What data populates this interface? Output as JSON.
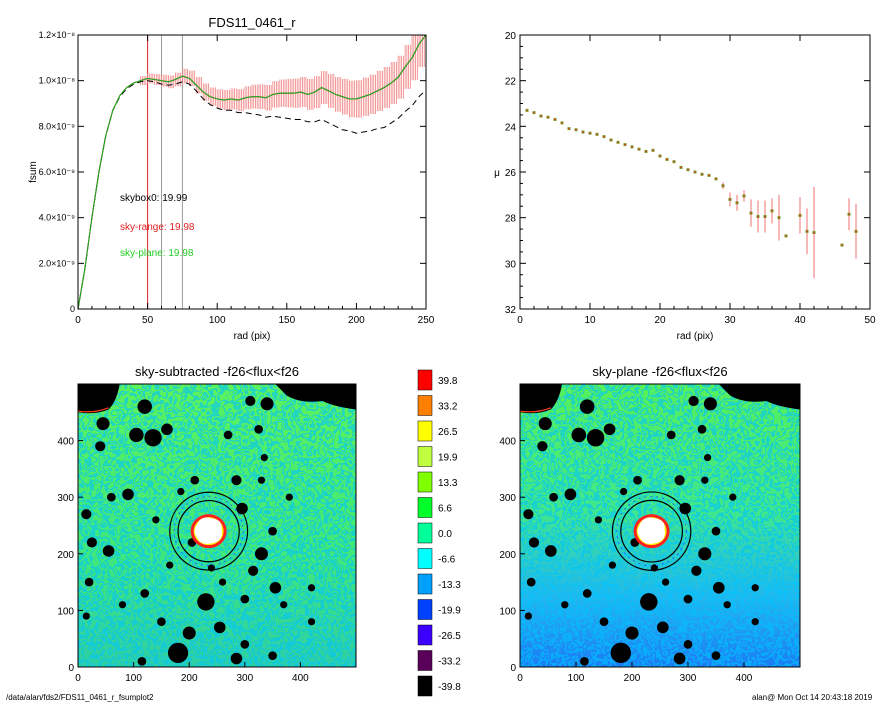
{
  "footer": {
    "path": "/data/alan/fds2/FDS11_0461_r_fsumplot2",
    "stamp": "alan@  Mon Oct 14 20:43:18 2019"
  },
  "chart_data": [
    {
      "type": "line",
      "title": "FDS11_0461_r",
      "xlabel": "rad (pix)",
      "ylabel": "fsum",
      "xlim": [
        0,
        250
      ],
      "ylim": [
        0,
        1.2e-08
      ],
      "xticks": [
        "0",
        "50",
        "100",
        "150",
        "200",
        "250"
      ],
      "yticks": [
        "0",
        "2.0×10⁻⁹",
        "4.0×10⁻⁹",
        "6.0×10⁻⁹",
        "8.0×10⁻⁹",
        "1.0×10⁻⁸",
        "1.2×10⁻⁸"
      ],
      "vlines": [
        {
          "x": 50,
          "color": "#e02020"
        },
        {
          "x": 60,
          "color": "#999999"
        },
        {
          "x": 75,
          "color": "#999999"
        }
      ],
      "annotations": [
        {
          "text": "skybox0: 19.99",
          "color": "#000000"
        },
        {
          "text": "sky-range: 19.98",
          "color": "#e02020"
        },
        {
          "text": "sky-plane: 19.98",
          "color": "#22cc22"
        }
      ],
      "series": [
        {
          "style": "solid",
          "color": "#c82020",
          "x": [
            0,
            5,
            10,
            15,
            20,
            25,
            30,
            35,
            40,
            45,
            50,
            55,
            60,
            65,
            70,
            75,
            80,
            85,
            90,
            95,
            100,
            105,
            110,
            115,
            120,
            125,
            130,
            135,
            140,
            145,
            150,
            155,
            160,
            165,
            170,
            175,
            180,
            185,
            190,
            195,
            200,
            205,
            210,
            215,
            220,
            225,
            230,
            235,
            240,
            245,
            250
          ],
          "y": [
            0,
            1.8e-09,
            4e-09,
            6e-09,
            7.6e-09,
            8.7e-09,
            9.35e-09,
            9.7e-09,
            9.9e-09,
            1e-08,
            1.01e-08,
            1.005e-08,
            1e-08,
            9.95e-09,
            1.005e-08,
            1.02e-08,
            1.01e-08,
            9.8e-09,
            9.5e-09,
            9.3e-09,
            9.2e-09,
            9.15e-09,
            9.2e-09,
            9.15e-09,
            9.25e-09,
            9.3e-09,
            9.3e-09,
            9.25e-09,
            9.4e-09,
            9.45e-09,
            9.45e-09,
            9.45e-09,
            9.5e-09,
            9.4e-09,
            9.5e-09,
            9.7e-09,
            9.55e-09,
            9.4e-09,
            9.3e-09,
            9.2e-09,
            9.2e-09,
            9.3e-09,
            9.4e-09,
            9.55e-09,
            9.7e-09,
            9.9e-09,
            1.015e-08,
            1.06e-08,
            1.1e-08,
            1.16e-08,
            1.2e-08
          ],
          "err": [
            0,
            3e-11,
            5e-11,
            8e-11,
            1e-10,
            1.2e-10,
            1.4e-10,
            1.6e-10,
            1.8e-10,
            2e-10,
            2.2e-10,
            2.4e-10,
            2.6e-10,
            2.8e-10,
            3e-10,
            3.2e-10,
            3.4e-10,
            3.6e-10,
            3.8e-10,
            4e-10,
            4.2e-10,
            4.4e-10,
            4.6e-10,
            4.8e-10,
            5e-10,
            5.2e-10,
            5.4e-10,
            5.6e-10,
            5.8e-10,
            6e-10,
            6.2e-10,
            6.4e-10,
            6.6e-10,
            6.8e-10,
            7e-10,
            7.2e-10,
            7.4e-10,
            7.6e-10,
            7.8e-10,
            8e-10,
            8.2e-10,
            8.4e-10,
            8.6e-10,
            8.8e-10,
            9e-10,
            9.2e-10,
            9.4e-10,
            9.6e-10,
            9.8e-10,
            1e-09,
            1e-09
          ]
        },
        {
          "style": "dashed",
          "color": "#000000",
          "x": [
            0,
            5,
            10,
            15,
            20,
            25,
            30,
            35,
            40,
            45,
            50,
            55,
            60,
            65,
            70,
            75,
            80,
            85,
            90,
            95,
            100,
            105,
            110,
            115,
            120,
            125,
            130,
            135,
            140,
            145,
            150,
            155,
            160,
            165,
            170,
            175,
            180,
            185,
            190,
            195,
            200,
            205,
            210,
            215,
            220,
            225,
            230,
            235,
            240,
            245,
            250
          ],
          "y": [
            0,
            1.8e-09,
            4e-09,
            6e-09,
            7.6e-09,
            8.7e-09,
            9.3e-09,
            9.65e-09,
            9.85e-09,
            9.95e-09,
            1e-08,
            9.95e-09,
            9.85e-09,
            9.8e-09,
            9.85e-09,
            9.95e-09,
            9.85e-09,
            9.55e-09,
            9.2e-09,
            8.95e-09,
            8.8e-09,
            8.7e-09,
            8.7e-09,
            8.6e-09,
            8.6e-09,
            8.55e-09,
            8.5e-09,
            8.4e-09,
            8.45e-09,
            8.4e-09,
            8.35e-09,
            8.3e-09,
            8.3e-09,
            8.2e-09,
            8.2e-09,
            8.3e-09,
            8.15e-09,
            8e-09,
            7.85e-09,
            7.8e-09,
            7.7e-09,
            7.75e-09,
            7.8e-09,
            7.9e-09,
            7.95e-09,
            8.15e-09,
            8.35e-09,
            8.65e-09,
            8.9e-09,
            9.3e-09,
            9.6e-09
          ]
        },
        {
          "style": "solid",
          "color": "#22aa22",
          "x": [
            0,
            5,
            10,
            15,
            20,
            25,
            30,
            35,
            40,
            45,
            50,
            55,
            60,
            65,
            70,
            75,
            80,
            85,
            90,
            95,
            100,
            105,
            110,
            115,
            120,
            125,
            130,
            135,
            140,
            145,
            150,
            155,
            160,
            165,
            170,
            175,
            180,
            185,
            190,
            195,
            200,
            205,
            210,
            215,
            220,
            225,
            230,
            235,
            240,
            245,
            250
          ],
          "y": [
            0,
            1.8e-09,
            4e-09,
            6e-09,
            7.6e-09,
            8.7e-09,
            9.35e-09,
            9.7e-09,
            9.9e-09,
            1e-08,
            1.01e-08,
            1.005e-08,
            1e-08,
            9.95e-09,
            1.005e-08,
            1.02e-08,
            1.01e-08,
            9.8e-09,
            9.5e-09,
            9.3e-09,
            9.2e-09,
            9.15e-09,
            9.2e-09,
            9.15e-09,
            9.25e-09,
            9.3e-09,
            9.3e-09,
            9.25e-09,
            9.4e-09,
            9.45e-09,
            9.45e-09,
            9.45e-09,
            9.5e-09,
            9.4e-09,
            9.5e-09,
            9.7e-09,
            9.55e-09,
            9.4e-09,
            9.3e-09,
            9.2e-09,
            9.2e-09,
            9.3e-09,
            9.4e-09,
            9.55e-09,
            9.7e-09,
            9.9e-09,
            1.015e-08,
            1.06e-08,
            1.1e-08,
            1.16e-08,
            1.2e-08
          ]
        }
      ]
    },
    {
      "type": "scatter",
      "title": "",
      "xlabel": "rad (pix)",
      "ylabel": "μ",
      "xlim": [
        0,
        50
      ],
      "ylim": [
        32,
        20
      ],
      "xticks": [
        "0",
        "10",
        "20",
        "30",
        "40",
        "50"
      ],
      "yticks": [
        "20",
        "22",
        "24",
        "26",
        "28",
        "30",
        "32"
      ],
      "points": [
        {
          "x": 1,
          "y": 23.3,
          "err": 0.05
        },
        {
          "x": 2,
          "y": 23.4,
          "err": 0.05
        },
        {
          "x": 3,
          "y": 23.55,
          "err": 0.05
        },
        {
          "x": 4,
          "y": 23.6,
          "err": 0.05
        },
        {
          "x": 5,
          "y": 23.7,
          "err": 0.05
        },
        {
          "x": 6,
          "y": 23.85,
          "err": 0.05
        },
        {
          "x": 7,
          "y": 24.1,
          "err": 0.05
        },
        {
          "x": 8,
          "y": 24.15,
          "err": 0.05
        },
        {
          "x": 9,
          "y": 24.25,
          "err": 0.05
        },
        {
          "x": 10,
          "y": 24.3,
          "err": 0.05
        },
        {
          "x": 11,
          "y": 24.35,
          "err": 0.05
        },
        {
          "x": 12,
          "y": 24.45,
          "err": 0.05
        },
        {
          "x": 13,
          "y": 24.6,
          "err": 0.05
        },
        {
          "x": 14,
          "y": 24.7,
          "err": 0.05
        },
        {
          "x": 15,
          "y": 24.8,
          "err": 0.05
        },
        {
          "x": 16,
          "y": 24.9,
          "err": 0.05
        },
        {
          "x": 17,
          "y": 25.0,
          "err": 0.05
        },
        {
          "x": 18,
          "y": 25.1,
          "err": 0.05
        },
        {
          "x": 19,
          "y": 25.05,
          "err": 0.05
        },
        {
          "x": 20,
          "y": 25.3,
          "err": 0.05
        },
        {
          "x": 21,
          "y": 25.45,
          "err": 0.05
        },
        {
          "x": 22,
          "y": 25.55,
          "err": 0.05
        },
        {
          "x": 23,
          "y": 25.8,
          "err": 0.05
        },
        {
          "x": 24,
          "y": 25.9,
          "err": 0.05
        },
        {
          "x": 25,
          "y": 26.0,
          "err": 0.05
        },
        {
          "x": 26,
          "y": 26.1,
          "err": 0.05
        },
        {
          "x": 27,
          "y": 26.15,
          "err": 0.1
        },
        {
          "x": 28,
          "y": 26.3,
          "err": 0.1
        },
        {
          "x": 29,
          "y": 26.6,
          "err": 0.15
        },
        {
          "x": 30,
          "y": 27.2,
          "err": 0.3
        },
        {
          "x": 31,
          "y": 27.35,
          "err": 0.35
        },
        {
          "x": 32,
          "y": 27.05,
          "err": 0.25
        },
        {
          "x": 33,
          "y": 27.8,
          "err": 0.6
        },
        {
          "x": 34,
          "y": 27.95,
          "err": 0.7
        },
        {
          "x": 35,
          "y": 27.95,
          "err": 0.7
        },
        {
          "x": 36,
          "y": 27.7,
          "err": 0.55
        },
        {
          "x": 37,
          "y": 28.0,
          "err": 1.0
        },
        {
          "x": 38,
          "y": 28.8,
          "err": 0.1
        },
        {
          "x": 40,
          "y": 27.9,
          "err": 0.8
        },
        {
          "x": 41,
          "y": 28.6,
          "err": 1.0
        },
        {
          "x": 42,
          "y": 28.65,
          "err": 2.0
        },
        {
          "x": 46,
          "y": 29.2,
          "err": 0.1
        },
        {
          "x": 47,
          "y": 27.85,
          "err": 0.7
        },
        {
          "x": 48,
          "y": 28.6,
          "err": 1.2
        }
      ]
    },
    {
      "type": "heatmap",
      "title": "sky-subtracted -f26<flux<f26",
      "xlim": [
        0,
        500
      ],
      "ylim": [
        0,
        500
      ],
      "xticks": [
        "0",
        "100",
        "200",
        "300",
        "400"
      ],
      "yticks": [
        "0",
        "100",
        "200",
        "300",
        "400"
      ],
      "center": [
        235,
        240
      ],
      "annulus_radii": [
        55,
        70
      ]
    },
    {
      "type": "heatmap",
      "title": "sky-plane -f26<flux<f26",
      "xlim": [
        0,
        500
      ],
      "ylim": [
        0,
        500
      ],
      "xticks": [
        "0",
        "100",
        "200",
        "300",
        "400"
      ],
      "yticks": [
        "0",
        "100",
        "200",
        "300",
        "400"
      ],
      "center": [
        235,
        240
      ],
      "annulus_radii": [
        55,
        70
      ]
    }
  ],
  "colorbar": {
    "labels": [
      "39.8",
      "33.2",
      "26.5",
      "19.9",
      "13.3",
      "6.6",
      "0.0",
      "-6.6",
      "-13.3",
      "-19.9",
      "-26.5",
      "-33.2",
      "-39.8"
    ],
    "colors": [
      "#ff0000",
      "#ff7f00",
      "#ffff00",
      "#bfff3f",
      "#7fff00",
      "#00ff2a",
      "#00ff99",
      "#00ffff",
      "#00a0ff",
      "#0040ff",
      "#3c00ff",
      "#5a005a",
      "#000000"
    ]
  }
}
